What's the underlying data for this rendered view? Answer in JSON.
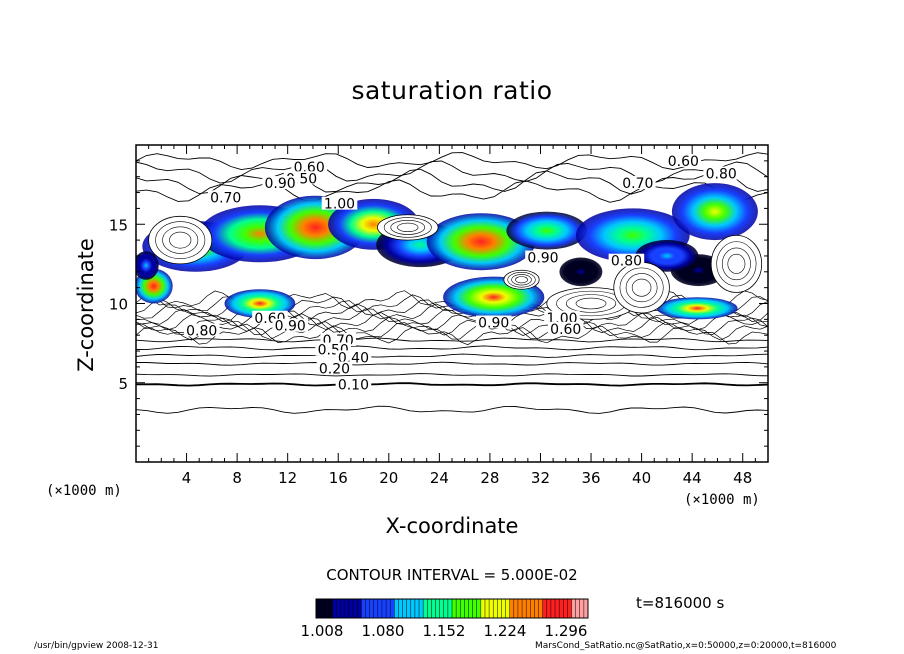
{
  "chart_data": {
    "type": "heatmap",
    "title": "saturation ratio",
    "xlabel": "X-coordinate",
    "ylabel": "Z-coordinate",
    "x_unit": "(×1000 m)",
    "xlim": [
      0,
      50
    ],
    "ylim": [
      0,
      20
    ],
    "x_ticks": [
      4,
      8,
      12,
      16,
      20,
      24,
      28,
      32,
      36,
      40,
      44,
      48
    ],
    "y_ticks": [
      5,
      10,
      15
    ],
    "contour_interval": "CONTOUR INTERVAL = 5.000E-02",
    "time": "t=816000 s",
    "colorbar": {
      "range": [
        1.008,
        1.332
      ],
      "tick_labels": [
        "1.008",
        "1.080",
        "1.152",
        "1.224",
        "1.296"
      ],
      "colors": [
        "#000020",
        "#0000a0",
        "#1840ff",
        "#00c8ff",
        "#00ff90",
        "#40ff00",
        "#f0ff00",
        "#ff8000",
        "#ff2020",
        "#ffa0a0"
      ]
    },
    "contour_labels": [
      {
        "text": "0.60",
        "x": 13.7,
        "z": 18.6
      },
      {
        "text": "0.50",
        "x": 13.1,
        "z": 17.9
      },
      {
        "text": "0.90",
        "x": 11.4,
        "z": 17.6
      },
      {
        "text": "0.70",
        "x": 7.1,
        "z": 16.7
      },
      {
        "text": "1.00",
        "x": 16.1,
        "z": 16.3
      },
      {
        "text": "0.60",
        "x": 43.3,
        "z": 19.0
      },
      {
        "text": "0.70",
        "x": 39.7,
        "z": 17.6
      },
      {
        "text": "0.80",
        "x": 46.3,
        "z": 18.2
      },
      {
        "text": "0.60",
        "x": 10.6,
        "z": 9.1
      },
      {
        "text": "0.80",
        "x": 5.2,
        "z": 8.3
      },
      {
        "text": "0.90",
        "x": 12.2,
        "z": 8.6
      },
      {
        "text": "0.70",
        "x": 16.0,
        "z": 7.7
      },
      {
        "text": "0.50",
        "x": 15.6,
        "z": 7.1
      },
      {
        "text": "0.40",
        "x": 17.2,
        "z": 6.6
      },
      {
        "text": "0.20",
        "x": 15.7,
        "z": 5.9
      },
      {
        "text": "0.10",
        "x": 17.2,
        "z": 4.9
      },
      {
        "text": "1.00",
        "x": 33.7,
        "z": 9.1
      },
      {
        "text": "0.60",
        "x": 34.0,
        "z": 8.4
      },
      {
        "text": "0.90",
        "x": 28.3,
        "z": 8.8
      },
      {
        "text": "0.80",
        "x": 38.8,
        "z": 12.7
      },
      {
        "text": "0.90",
        "x": 32.2,
        "z": 12.9
      }
    ],
    "regions": [
      {
        "x": 4.7,
        "z": 13.6,
        "rx": 4.2,
        "rz": 1.6,
        "level": 0.7
      },
      {
        "x": 9.8,
        "z": 14.4,
        "rx": 4.8,
        "rz": 1.8,
        "level": 0.8
      },
      {
        "x": 14.2,
        "z": 14.8,
        "rx": 4.0,
        "rz": 2.0,
        "level": 0.95
      },
      {
        "x": 18.8,
        "z": 15.0,
        "rx": 3.6,
        "rz": 1.6,
        "level": 0.85
      },
      {
        "x": 22.5,
        "z": 13.7,
        "rx": 3.5,
        "rz": 1.4,
        "level": 0.5
      },
      {
        "x": 27.3,
        "z": 13.9,
        "rx": 4.3,
        "rz": 1.8,
        "level": 0.98
      },
      {
        "x": 32.5,
        "z": 14.6,
        "rx": 3.2,
        "rz": 1.2,
        "level": 0.6
      },
      {
        "x": 39.3,
        "z": 14.3,
        "rx": 4.5,
        "rz": 1.7,
        "level": 0.65
      },
      {
        "x": 45.8,
        "z": 15.8,
        "rx": 3.4,
        "rz": 1.8,
        "level": 0.72
      },
      {
        "x": 1.4,
        "z": 11.1,
        "rx": 1.5,
        "rz": 1.1,
        "level": 0.95
      },
      {
        "x": 0.8,
        "z": 12.4,
        "rx": 1.0,
        "rz": 0.9,
        "level": 0.35
      },
      {
        "x": 9.8,
        "z": 10.0,
        "rx": 2.8,
        "rz": 0.9,
        "level": 0.9
      },
      {
        "x": 28.3,
        "z": 10.4,
        "rx": 4.0,
        "rz": 1.3,
        "level": 0.93
      },
      {
        "x": 35.2,
        "z": 12.0,
        "rx": 1.7,
        "rz": 0.9,
        "level": 0.12
      },
      {
        "x": 44.5,
        "z": 12.1,
        "rx": 2.2,
        "rz": 1.0,
        "level": 0.12
      },
      {
        "x": 44.4,
        "z": 9.7,
        "rx": 3.2,
        "rz": 0.7,
        "level": 0.9
      },
      {
        "x": 42.0,
        "z": 13.0,
        "rx": 2.5,
        "rz": 1.0,
        "level": 0.4
      }
    ],
    "level_lines": [
      {
        "z": 19.0,
        "amp": 0.35
      },
      {
        "z": 18.3,
        "amp": 0.45
      },
      {
        "z": 17.7,
        "amp": 0.5
      },
      {
        "z": 17.1,
        "amp": 0.45
      },
      {
        "z": 7.7,
        "amp": 0.08
      },
      {
        "z": 7.2,
        "amp": 0.08
      },
      {
        "z": 6.7,
        "amp": 0.07
      },
      {
        "z": 6.2,
        "amp": 0.06
      },
      {
        "z": 5.5,
        "amp": 0.05
      },
      {
        "z": 4.9,
        "amp": 0.05
      },
      {
        "z": 3.3,
        "amp": 0.15
      }
    ],
    "white_patches": [
      {
        "x": 3.5,
        "z": 14.0,
        "rx": 2.5,
        "rz": 1.5
      },
      {
        "x": 21.5,
        "z": 14.8,
        "rx": 2.4,
        "rz": 0.8
      },
      {
        "x": 36.0,
        "z": 10.0,
        "rx": 3.5,
        "rz": 1.0
      },
      {
        "x": 40.0,
        "z": 11.0,
        "rx": 2.2,
        "rz": 1.6
      },
      {
        "x": 47.5,
        "z": 12.5,
        "rx": 2.0,
        "rz": 1.8
      },
      {
        "x": 30.5,
        "z": 11.5,
        "rx": 1.4,
        "rz": 0.6
      }
    ]
  },
  "footer": {
    "left": "/usr/bin/gpview   2008-12-31",
    "right": "MarsCond_SatRatio.nc@SatRatio,x=0:50000,z=0:20000,t=816000"
  }
}
